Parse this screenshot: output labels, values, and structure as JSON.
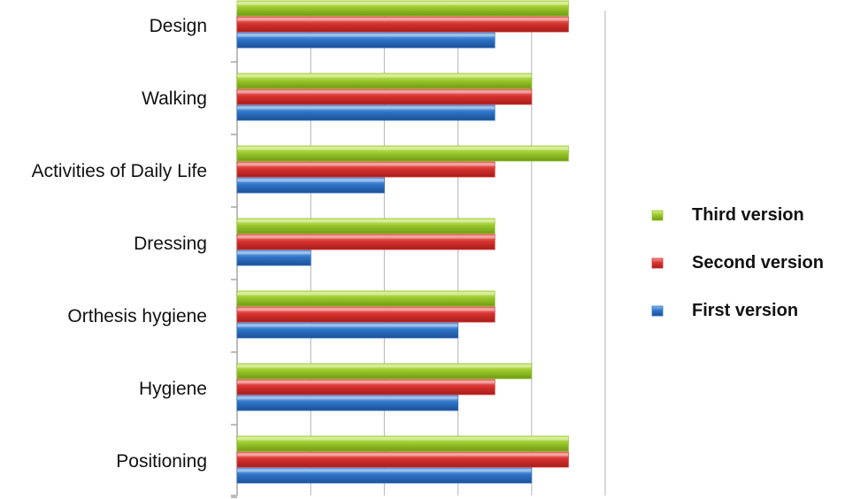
{
  "chart_data": {
    "type": "bar",
    "orientation": "horizontal",
    "categories": [
      "Design",
      "Walking",
      "Activities of Daily Life",
      "Dressing",
      "Orthesis hygiene",
      "Hygiene",
      "Positioning"
    ],
    "series": [
      {
        "name": "Third version",
        "color": "#92c026",
        "values": [
          4.5,
          4,
          4.5,
          3.5,
          3.5,
          4,
          4.5
        ]
      },
      {
        "name": "Second version",
        "color": "#d6312e",
        "values": [
          4.5,
          4,
          3.5,
          3.5,
          3.5,
          3.5,
          4.5
        ]
      },
      {
        "name": "First version",
        "color": "#2f74c8",
        "values": [
          3.5,
          3.5,
          2,
          1,
          3,
          3,
          4
        ]
      }
    ],
    "xlim": [
      0,
      5
    ],
    "grid": true,
    "legend_position": "right",
    "title": "",
    "xlabel": "",
    "ylabel": ""
  }
}
